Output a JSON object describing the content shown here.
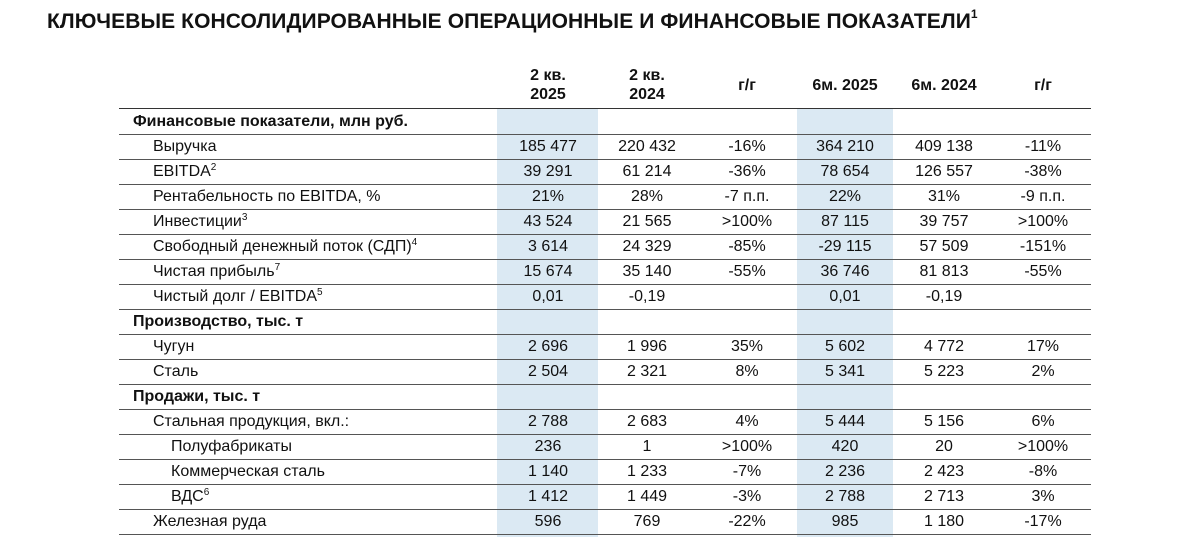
{
  "title": "КЛЮЧЕВЫЕ КОНСОЛИДИРОВАННЫЕ ОПЕРАЦИОННЫЕ И ФИНАНСОВЫЕ ПОКАЗАТЕЛИ",
  "title_footnote": "1",
  "columns": [
    {
      "line1": "2 кв.",
      "line2": "2025"
    },
    {
      "line1": "2 кв.",
      "line2": "2024"
    },
    {
      "line1": "г/г",
      "line2": ""
    },
    {
      "line1": "6м. 2025",
      "line2": ""
    },
    {
      "line1": "6м. 2024",
      "line2": ""
    },
    {
      "line1": "г/г",
      "line2": ""
    }
  ],
  "rows": [
    {
      "type": "section",
      "label": "Финансовые показатели, млн руб.",
      "values": [
        "",
        "",
        "",
        "",
        "",
        ""
      ]
    },
    {
      "type": "row",
      "indent": 1,
      "label": "Выручка",
      "footnote": "",
      "values": [
        "185 477",
        "220 432",
        "-16%",
        "364 210",
        "409 138",
        "-11%"
      ]
    },
    {
      "type": "row",
      "indent": 1,
      "label": "EBITDA",
      "footnote": "2",
      "values": [
        "39 291",
        "61 214",
        "-36%",
        "78 654",
        "126 557",
        "-38%"
      ]
    },
    {
      "type": "row",
      "indent": 1,
      "label": "Рентабельность по EBITDA, %",
      "footnote": "",
      "values": [
        "21%",
        "28%",
        "-7 п.п.",
        "22%",
        "31%",
        "-9 п.п."
      ]
    },
    {
      "type": "row",
      "indent": 1,
      "label": "Инвестиции",
      "footnote": "3",
      "values": [
        "43 524",
        "21 565",
        ">100%",
        "87 115",
        "39 757",
        ">100%"
      ]
    },
    {
      "type": "row",
      "indent": 1,
      "label": "Свободный денежный поток (СДП)",
      "footnote": "4",
      "values": [
        "3 614",
        "24 329",
        "-85%",
        "-29 115",
        "57 509",
        "-151%"
      ]
    },
    {
      "type": "row",
      "indent": 1,
      "label": "Чистая прибыль",
      "footnote": "7",
      "values": [
        "15 674",
        "35 140",
        "-55%",
        "36 746",
        "81 813",
        "-55%"
      ]
    },
    {
      "type": "row",
      "indent": 1,
      "label": "Чистый долг / EBITDA",
      "footnote": "5",
      "values": [
        "0,01",
        "-0,19",
        "",
        "0,01",
        "-0,19",
        ""
      ]
    },
    {
      "type": "section",
      "label": "Производство, тыс. т",
      "values": [
        "",
        "",
        "",
        "",
        "",
        ""
      ]
    },
    {
      "type": "row",
      "indent": 1,
      "label": "Чугун",
      "footnote": "",
      "values": [
        "2 696",
        "1 996",
        "35%",
        "5 602",
        "4 772",
        "17%"
      ]
    },
    {
      "type": "row",
      "indent": 1,
      "label": "Сталь",
      "footnote": "",
      "values": [
        "2 504",
        "2 321",
        "8%",
        "5 341",
        "5 223",
        "2%"
      ]
    },
    {
      "type": "section",
      "label": "Продажи, тыс. т",
      "values": [
        "",
        "",
        "",
        "",
        "",
        ""
      ]
    },
    {
      "type": "row",
      "indent": 1,
      "label": "Стальная продукция, вкл.:",
      "footnote": "",
      "values": [
        "2 788",
        "2 683",
        "4%",
        "5 444",
        "5 156",
        "6%"
      ]
    },
    {
      "type": "row",
      "indent": 2,
      "label": "Полуфабрикаты",
      "footnote": "",
      "values": [
        "236",
        "1",
        ">100%",
        "420",
        "20",
        ">100%"
      ]
    },
    {
      "type": "row",
      "indent": 2,
      "label": "Коммерческая сталь",
      "footnote": "",
      "values": [
        "1 140",
        "1 233",
        "-7%",
        "2 236",
        "2 423",
        "-8%"
      ]
    },
    {
      "type": "row",
      "indent": 2,
      "label": "ВДС",
      "footnote": "6",
      "values": [
        "1 412",
        "1 449",
        "-3%",
        "2 788",
        "2 713",
        "3%"
      ]
    },
    {
      "type": "row",
      "indent": 1,
      "label": "Железная руда",
      "footnote": "",
      "values": [
        "596",
        "769",
        "-22%",
        "985",
        "1 180",
        "-17%"
      ]
    }
  ],
  "colors": {
    "highlight": "#dbe9f3",
    "text": "#111111",
    "rule": "#555555"
  }
}
